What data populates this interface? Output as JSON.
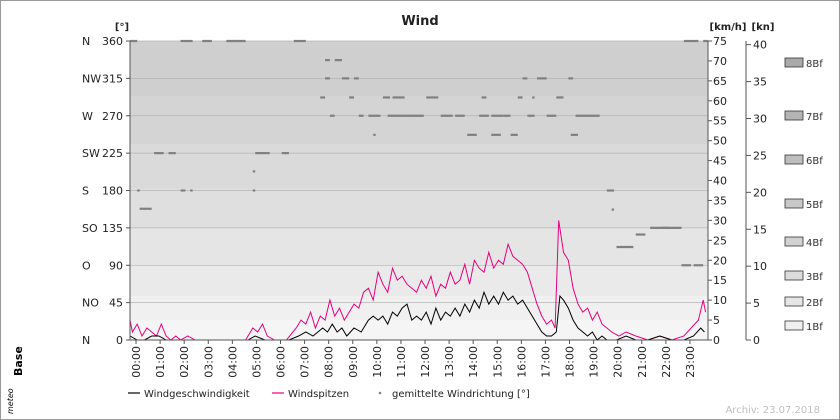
{
  "chart_data": {
    "type": "line",
    "title": "Wind",
    "left_axis": {
      "unit": "[°]",
      "range": [
        0,
        360
      ],
      "ticks": [
        0,
        45,
        90,
        135,
        180,
        225,
        270,
        315,
        360
      ],
      "direction_labels": [
        "N",
        "NO",
        "O",
        "SO",
        "S",
        "SW",
        "W",
        "NW",
        "N"
      ]
    },
    "right_axis_kmh": {
      "unit": "[km/h]",
      "range": [
        0,
        75
      ],
      "ticks": [
        0,
        5,
        10,
        15,
        20,
        25,
        30,
        35,
        40,
        45,
        50,
        55,
        60,
        65,
        70,
        75
      ]
    },
    "right_axis_kn": {
      "unit": "[kn]",
      "ticks": [
        0,
        5,
        10,
        15,
        20,
        25,
        30,
        35,
        40
      ]
    },
    "beaufort_bands": [
      {
        "label": "1Bf",
        "upper_kmh": 5
      },
      {
        "label": "2Bf",
        "upper_kmh": 11
      },
      {
        "label": "3Bf",
        "upper_kmh": 19
      },
      {
        "label": "4Bf",
        "upper_kmh": 28
      },
      {
        "label": "5Bf",
        "upper_kmh": 38
      },
      {
        "label": "6Bf",
        "upper_kmh": 49
      },
      {
        "label": "7Bf",
        "upper_kmh": 61
      },
      {
        "label": "8Bf",
        "upper_kmh": 74
      }
    ],
    "x_ticks": [
      "00:00",
      "01:00",
      "02:00",
      "03:00",
      "04:00",
      "05:00",
      "06:00",
      "07:00",
      "08:00",
      "09:00",
      "10:00",
      "11:00",
      "12:00",
      "13:00",
      "14:00",
      "15:00",
      "16:00",
      "17:00",
      "18:00",
      "19:00",
      "20:00",
      "21:00",
      "22:00",
      "23:00"
    ],
    "x_range_hours": [
      0,
      24
    ],
    "series": [
      {
        "name": "Windgeschwindigkeit",
        "color": "#000000",
        "points": [
          [
            0,
            1
          ],
          [
            0.3,
            0
          ],
          [
            0.6,
            0
          ],
          [
            0.9,
            1
          ],
          [
            1.2,
            1
          ],
          [
            1.5,
            0
          ],
          [
            2,
            0
          ],
          [
            3,
            0
          ],
          [
            4,
            0
          ],
          [
            4.9,
            0
          ],
          [
            5.2,
            1
          ],
          [
            5.6,
            0
          ],
          [
            6,
            0
          ],
          [
            6.6,
            0
          ],
          [
            7,
            1
          ],
          [
            7.3,
            2
          ],
          [
            7.6,
            1
          ],
          [
            8,
            3
          ],
          [
            8.2,
            2
          ],
          [
            8.4,
            4
          ],
          [
            8.6,
            2
          ],
          [
            8.8,
            3
          ],
          [
            9,
            1
          ],
          [
            9.3,
            3
          ],
          [
            9.6,
            2
          ],
          [
            9.9,
            5
          ],
          [
            10.1,
            6
          ],
          [
            10.3,
            5
          ],
          [
            10.5,
            6
          ],
          [
            10.7,
            4
          ],
          [
            10.9,
            7
          ],
          [
            11.1,
            6
          ],
          [
            11.3,
            8
          ],
          [
            11.5,
            9
          ],
          [
            11.7,
            5
          ],
          [
            11.9,
            6
          ],
          [
            12.1,
            5
          ],
          [
            12.3,
            7
          ],
          [
            12.5,
            4
          ],
          [
            12.7,
            8
          ],
          [
            12.9,
            5
          ],
          [
            13.1,
            7
          ],
          [
            13.3,
            6
          ],
          [
            13.5,
            8
          ],
          [
            13.7,
            6
          ],
          [
            13.9,
            9
          ],
          [
            14.1,
            7
          ],
          [
            14.3,
            10
          ],
          [
            14.5,
            8
          ],
          [
            14.7,
            12
          ],
          [
            14.9,
            9
          ],
          [
            15.1,
            11
          ],
          [
            15.3,
            9
          ],
          [
            15.5,
            12
          ],
          [
            15.7,
            10
          ],
          [
            15.9,
            11
          ],
          [
            16.1,
            9
          ],
          [
            16.3,
            10
          ],
          [
            16.5,
            8
          ],
          [
            16.7,
            6
          ],
          [
            16.9,
            4
          ],
          [
            17.1,
            2
          ],
          [
            17.3,
            1
          ],
          [
            17.5,
            1
          ],
          [
            17.7,
            2
          ],
          [
            17.85,
            11
          ],
          [
            18,
            10
          ],
          [
            18.2,
            8
          ],
          [
            18.4,
            5
          ],
          [
            18.6,
            3
          ],
          [
            18.8,
            2
          ],
          [
            19,
            1
          ],
          [
            19.2,
            2
          ],
          [
            19.4,
            0
          ],
          [
            19.6,
            1
          ],
          [
            19.8,
            0
          ],
          [
            20.2,
            0
          ],
          [
            20.6,
            1
          ],
          [
            21,
            0
          ],
          [
            21.5,
            0
          ],
          [
            22,
            1
          ],
          [
            22.5,
            0
          ],
          [
            23,
            0
          ],
          [
            23.4,
            1
          ],
          [
            23.7,
            3
          ],
          [
            23.85,
            2
          ]
        ]
      },
      {
        "name": "Windspitzen",
        "color": "#e6007e",
        "points": [
          [
            0,
            5
          ],
          [
            0.1,
            2
          ],
          [
            0.3,
            4
          ],
          [
            0.5,
            1
          ],
          [
            0.7,
            3
          ],
          [
            0.9,
            2
          ],
          [
            1.1,
            1
          ],
          [
            1.3,
            4
          ],
          [
            1.5,
            1
          ],
          [
            1.7,
            0
          ],
          [
            1.9,
            1
          ],
          [
            2.1,
            0
          ],
          [
            2.4,
            1
          ],
          [
            2.7,
            0
          ],
          [
            3,
            0
          ],
          [
            4,
            0
          ],
          [
            4.8,
            0
          ],
          [
            5.1,
            3
          ],
          [
            5.3,
            2
          ],
          [
            5.5,
            4
          ],
          [
            5.7,
            1
          ],
          [
            6,
            0
          ],
          [
            6.5,
            0
          ],
          [
            6.9,
            3
          ],
          [
            7.1,
            5
          ],
          [
            7.3,
            4
          ],
          [
            7.5,
            7
          ],
          [
            7.7,
            3
          ],
          [
            7.9,
            6
          ],
          [
            8.1,
            5
          ],
          [
            8.3,
            10
          ],
          [
            8.5,
            6
          ],
          [
            8.7,
            8
          ],
          [
            8.9,
            5
          ],
          [
            9.1,
            7
          ],
          [
            9.3,
            9
          ],
          [
            9.5,
            8
          ],
          [
            9.7,
            12
          ],
          [
            9.9,
            13
          ],
          [
            10.1,
            10
          ],
          [
            10.3,
            17
          ],
          [
            10.5,
            14
          ],
          [
            10.7,
            12
          ],
          [
            10.9,
            18
          ],
          [
            11.1,
            15
          ],
          [
            11.3,
            16
          ],
          [
            11.5,
            14
          ],
          [
            11.7,
            13
          ],
          [
            11.9,
            12
          ],
          [
            12.1,
            15
          ],
          [
            12.3,
            13
          ],
          [
            12.5,
            16
          ],
          [
            12.7,
            11
          ],
          [
            12.9,
            14
          ],
          [
            13.1,
            13
          ],
          [
            13.3,
            17
          ],
          [
            13.5,
            14
          ],
          [
            13.7,
            15
          ],
          [
            13.9,
            19
          ],
          [
            14.1,
            14
          ],
          [
            14.3,
            20
          ],
          [
            14.5,
            18
          ],
          [
            14.7,
            17
          ],
          [
            14.9,
            22
          ],
          [
            15.1,
            18
          ],
          [
            15.3,
            20
          ],
          [
            15.5,
            19
          ],
          [
            15.7,
            24
          ],
          [
            15.9,
            21
          ],
          [
            16.1,
            20
          ],
          [
            16.3,
            19
          ],
          [
            16.5,
            17
          ],
          [
            16.7,
            13
          ],
          [
            16.9,
            9
          ],
          [
            17.1,
            6
          ],
          [
            17.3,
            4
          ],
          [
            17.5,
            5
          ],
          [
            17.65,
            3
          ],
          [
            17.8,
            30
          ],
          [
            18,
            22
          ],
          [
            18.2,
            20
          ],
          [
            18.4,
            13
          ],
          [
            18.6,
            9
          ],
          [
            18.8,
            7
          ],
          [
            19,
            8
          ],
          [
            19.2,
            5
          ],
          [
            19.4,
            7
          ],
          [
            19.6,
            4
          ],
          [
            19.8,
            3
          ],
          [
            20,
            2
          ],
          [
            20.3,
            1
          ],
          [
            20.6,
            2
          ],
          [
            21,
            1
          ],
          [
            21.5,
            0
          ],
          [
            22,
            1
          ],
          [
            22.5,
            0
          ],
          [
            23,
            1
          ],
          [
            23.3,
            3
          ],
          [
            23.6,
            5
          ],
          [
            23.8,
            10
          ],
          [
            23.9,
            7
          ]
        ]
      },
      {
        "name": "gemittelte Windrichtung [°]",
        "color": "#808080",
        "segments": [
          [
            0,
            0.3,
            360
          ],
          [
            0.3,
            0.4,
            180
          ],
          [
            0.4,
            0.9,
            158
          ],
          [
            1,
            1.4,
            225
          ],
          [
            1.6,
            1.9,
            225
          ],
          [
            2.1,
            2.6,
            360
          ],
          [
            2.1,
            2.3,
            180
          ],
          [
            2.5,
            2.6,
            180
          ],
          [
            3,
            3.4,
            360
          ],
          [
            4,
            4.8,
            360
          ],
          [
            5.2,
            5.8,
            225
          ],
          [
            5.1,
            5.2,
            180
          ],
          [
            5.1,
            5.2,
            203
          ],
          [
            6.3,
            6.6,
            225
          ],
          [
            6.8,
            7.3,
            360
          ],
          [
            7.9,
            8.1,
            292
          ],
          [
            8.1,
            8.3,
            315
          ],
          [
            8.1,
            8.3,
            337
          ],
          [
            8.3,
            8.5,
            270
          ],
          [
            8.5,
            8.8,
            337
          ],
          [
            8.8,
            9.1,
            315
          ],
          [
            9.1,
            9.3,
            292
          ],
          [
            9.3,
            9.5,
            315
          ],
          [
            9.5,
            9.7,
            270
          ],
          [
            9.9,
            10.4,
            270
          ],
          [
            10.1,
            10.2,
            247
          ],
          [
            10.5,
            10.8,
            292
          ],
          [
            10.9,
            11.4,
            292
          ],
          [
            10.7,
            11.4,
            270
          ],
          [
            11.4,
            12.2,
            270
          ],
          [
            12.3,
            12.8,
            292
          ],
          [
            12.9,
            13.4,
            270
          ],
          [
            13.5,
            13.9,
            270
          ],
          [
            14,
            14.4,
            247
          ],
          [
            14.5,
            14.9,
            270
          ],
          [
            14.6,
            14.8,
            292
          ],
          [
            15,
            15.4,
            247
          ],
          [
            15,
            15.5,
            270
          ],
          [
            15.5,
            15.8,
            270
          ],
          [
            15.8,
            16.1,
            247
          ],
          [
            16.1,
            16.3,
            292
          ],
          [
            16.3,
            16.5,
            315
          ],
          [
            16.5,
            16.8,
            270
          ],
          [
            16.7,
            16.8,
            292
          ],
          [
            16.9,
            17.3,
            315
          ],
          [
            17.3,
            17.7,
            270
          ],
          [
            17.7,
            18,
            292
          ],
          [
            18.2,
            18.4,
            315
          ],
          [
            18.3,
            18.6,
            247
          ],
          [
            18.5,
            19.5,
            270
          ],
          [
            19.8,
            20.1,
            180
          ],
          [
            20,
            20.1,
            157
          ],
          [
            20.2,
            20.9,
            112
          ],
          [
            21,
            21.4,
            127
          ],
          [
            21.6,
            22.9,
            135
          ],
          [
            22.9,
            23.3,
            90
          ],
          [
            22.1,
            22.4,
            135
          ],
          [
            23.4,
            23.8,
            90
          ],
          [
            23,
            23.6,
            360
          ],
          [
            23.8,
            24,
            360
          ]
        ]
      }
    ],
    "legend": {
      "position": "bottom",
      "items": [
        "Windgeschwindigkeit",
        "Windspitzen",
        "gemittelte Windrichtung [°]"
      ]
    },
    "grid": true
  },
  "brand": {
    "text": "Base",
    "logo": "meteo"
  },
  "footer": {
    "archive_text": "Archiv: 23.07.2018"
  },
  "colors": {
    "plot_top": "#cfcfcf",
    "plot_bottom": "#f5f5f5",
    "speed": "#000000",
    "gust": "#e6007e",
    "direction": "#808080"
  }
}
